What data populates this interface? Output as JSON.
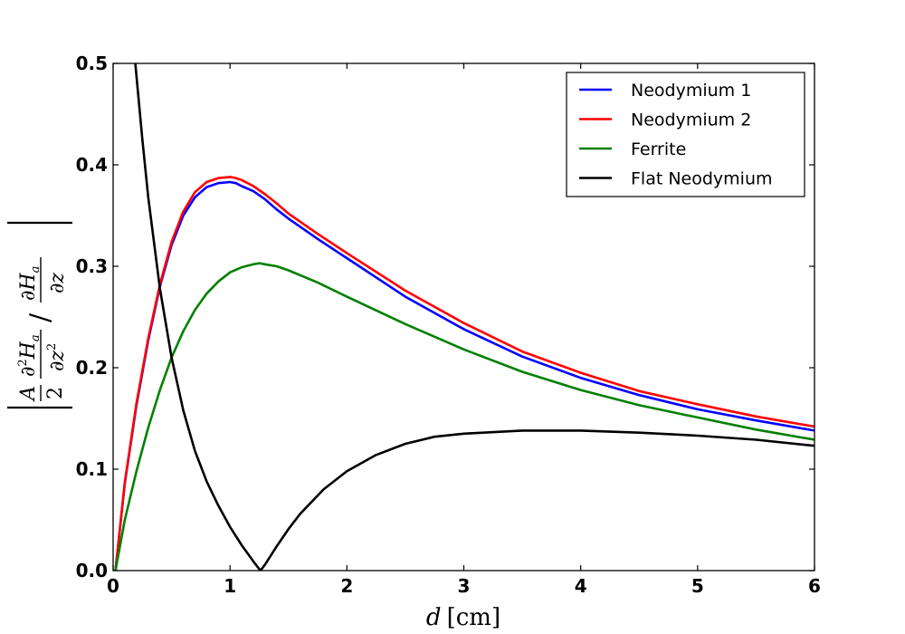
{
  "chart_data": {
    "type": "line",
    "title": "",
    "xlabel": {
      "var": "d",
      "unit": "cm"
    },
    "ylabel": {
      "left_factor": {
        "num": "A",
        "den": "2"
      },
      "numerator": {
        "d1": "∂",
        "sup1": "2",
        "var1": "H",
        "sub1": "a",
        "d2": "∂",
        "var2": "z",
        "sup2": "2"
      },
      "denominator": {
        "d1": "∂",
        "var1": "H",
        "sub1": "a",
        "d2": "∂",
        "var2": "z"
      },
      "slash": "/"
    },
    "xlim": [
      0,
      6
    ],
    "ylim": [
      0,
      0.5
    ],
    "xticks": [
      0,
      1,
      2,
      3,
      4,
      5,
      6
    ],
    "xtick_labels": [
      "0",
      "1",
      "2",
      "3",
      "4",
      "5",
      "6"
    ],
    "yticks": [
      0.0,
      0.1,
      0.2,
      0.3,
      0.4,
      0.5
    ],
    "ytick_labels": [
      "0.0",
      "0.1",
      "0.2",
      "0.3",
      "0.4",
      "0.5"
    ],
    "grid": false,
    "legend_position": "top-right",
    "series": [
      {
        "name": "Neodymium 1",
        "color": "#0000ff",
        "x": [
          0.02,
          0.1,
          0.2,
          0.3,
          0.4,
          0.5,
          0.6,
          0.7,
          0.8,
          0.9,
          1.0,
          1.05,
          1.1,
          1.2,
          1.3,
          1.4,
          1.5,
          1.75,
          2.0,
          2.5,
          3.0,
          3.5,
          4.0,
          4.5,
          5.0,
          5.5,
          6.0
        ],
        "y": [
          0.0,
          0.086,
          0.163,
          0.227,
          0.28,
          0.321,
          0.35,
          0.368,
          0.378,
          0.382,
          0.383,
          0.382,
          0.379,
          0.374,
          0.366,
          0.356,
          0.347,
          0.327,
          0.308,
          0.27,
          0.238,
          0.211,
          0.19,
          0.173,
          0.159,
          0.148,
          0.138
        ]
      },
      {
        "name": "Neodymium 2",
        "color": "#ff0000",
        "x": [
          0.02,
          0.1,
          0.2,
          0.3,
          0.4,
          0.5,
          0.6,
          0.7,
          0.8,
          0.9,
          1.0,
          1.05,
          1.1,
          1.2,
          1.3,
          1.4,
          1.5,
          1.75,
          2.0,
          2.5,
          3.0,
          3.5,
          4.0,
          4.5,
          5.0,
          5.5,
          6.0
        ],
        "y": [
          0.0,
          0.087,
          0.165,
          0.229,
          0.282,
          0.324,
          0.354,
          0.373,
          0.383,
          0.387,
          0.388,
          0.387,
          0.385,
          0.379,
          0.371,
          0.362,
          0.352,
          0.332,
          0.313,
          0.276,
          0.244,
          0.216,
          0.195,
          0.177,
          0.164,
          0.152,
          0.142
        ]
      },
      {
        "name": "Ferrite",
        "color": "#008000",
        "x": [
          0.02,
          0.1,
          0.2,
          0.3,
          0.4,
          0.5,
          0.6,
          0.7,
          0.8,
          0.9,
          1.0,
          1.1,
          1.2,
          1.25,
          1.3,
          1.4,
          1.5,
          1.75,
          2.0,
          2.5,
          3.0,
          3.5,
          4.0,
          4.5,
          5.0,
          5.5,
          6.0
        ],
        "y": [
          0.0,
          0.05,
          0.098,
          0.141,
          0.178,
          0.21,
          0.236,
          0.257,
          0.273,
          0.285,
          0.294,
          0.299,
          0.302,
          0.303,
          0.302,
          0.3,
          0.296,
          0.284,
          0.27,
          0.243,
          0.218,
          0.196,
          0.178,
          0.163,
          0.151,
          0.139,
          0.129
        ]
      },
      {
        "name": "Flat Neodymium",
        "color": "#000000",
        "x": [
          0.19,
          0.25,
          0.3,
          0.4,
          0.5,
          0.6,
          0.7,
          0.8,
          0.9,
          1.0,
          1.1,
          1.2,
          1.26,
          1.3,
          1.4,
          1.5,
          1.6,
          1.8,
          2.0,
          2.25,
          2.5,
          2.75,
          3.0,
          3.5,
          4.0,
          4.5,
          5.0,
          5.5,
          6.0
        ],
        "y": [
          0.5,
          0.425,
          0.368,
          0.278,
          0.21,
          0.158,
          0.118,
          0.088,
          0.064,
          0.043,
          0.025,
          0.009,
          0.0,
          0.006,
          0.024,
          0.041,
          0.056,
          0.08,
          0.098,
          0.114,
          0.125,
          0.132,
          0.135,
          0.138,
          0.138,
          0.136,
          0.133,
          0.129,
          0.123
        ]
      }
    ]
  }
}
